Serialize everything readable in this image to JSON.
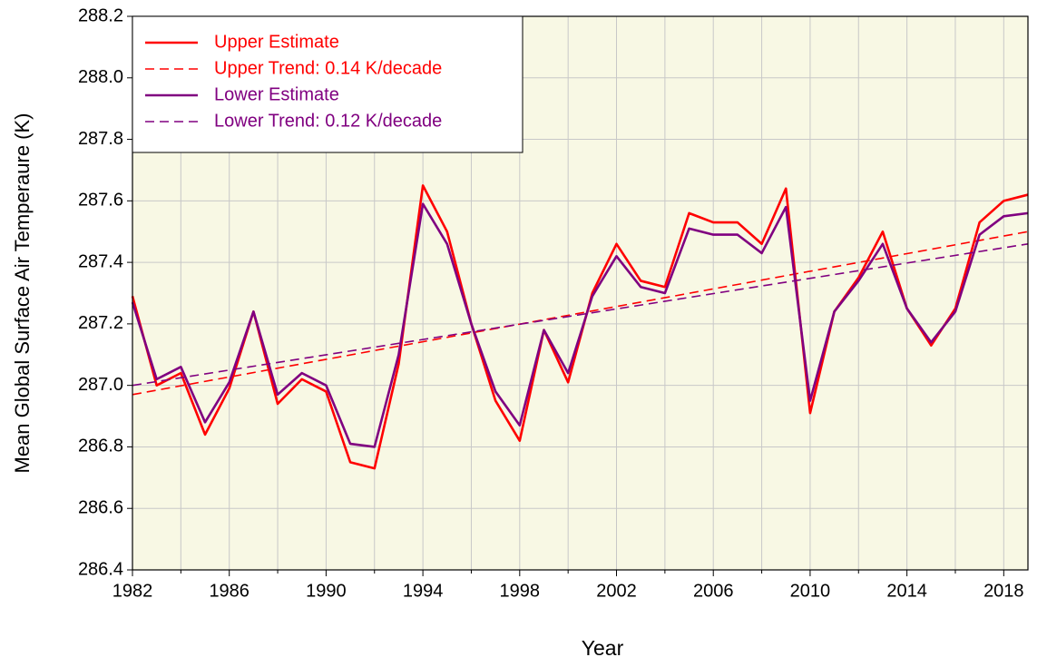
{
  "chart_data": {
    "type": "line",
    "x_label": "Year",
    "y_label": "Mean Global Surface Air Temperaure (K)",
    "x": [
      1982,
      1983,
      1984,
      1985,
      1986,
      1987,
      1988,
      1989,
      1990,
      1991,
      1992,
      1993,
      1994,
      1995,
      1996,
      1997,
      1998,
      1999,
      2000,
      2001,
      2002,
      2003,
      2004,
      2005,
      2006,
      2007,
      2008,
      2009,
      2010,
      2011,
      2012,
      2013,
      2014,
      2015,
      2016,
      2017,
      2018,
      2019
    ],
    "series": [
      {
        "name": "Upper Estimate",
        "color": "#ff0000",
        "style": "solid",
        "values": [
          287.29,
          287.0,
          287.04,
          286.84,
          286.99,
          287.24,
          286.94,
          287.02,
          286.98,
          286.75,
          286.73,
          287.07,
          287.65,
          287.5,
          287.2,
          286.95,
          286.82,
          287.18,
          287.01,
          287.3,
          287.46,
          287.34,
          287.32,
          287.56,
          287.53,
          287.53,
          287.46,
          287.64,
          286.91,
          287.24,
          287.35,
          287.5,
          287.25,
          287.13,
          287.25,
          287.53,
          287.6,
          287.62
        ]
      },
      {
        "name": "Upper Trend: 0.14 K/decade",
        "color": "#ff0000",
        "style": "dashed",
        "x": [
          1982,
          2019
        ],
        "values": [
          286.97,
          287.5
        ]
      },
      {
        "name": "Lower Estimate",
        "color": "#800080",
        "style": "solid",
        "values": [
          287.27,
          287.02,
          287.06,
          286.88,
          287.01,
          287.24,
          286.97,
          287.04,
          287.0,
          286.81,
          286.8,
          287.1,
          287.59,
          287.46,
          287.2,
          286.98,
          286.87,
          287.18,
          287.04,
          287.29,
          287.42,
          287.32,
          287.3,
          287.51,
          287.49,
          287.49,
          287.43,
          287.58,
          286.95,
          287.24,
          287.34,
          287.46,
          287.25,
          287.14,
          287.24,
          287.49,
          287.55,
          287.56
        ]
      },
      {
        "name": "Lower Trend: 0.12 K/decade",
        "color": "#800080",
        "style": "dashed",
        "x": [
          1982,
          2019
        ],
        "values": [
          287.0,
          287.46
        ]
      }
    ],
    "xlim": [
      1982,
      2019
    ],
    "xticks": [
      1982,
      1986,
      1990,
      1994,
      1998,
      2002,
      2006,
      2010,
      2014,
      2018
    ],
    "xminorticks": [
      1984,
      1988,
      1992,
      1996,
      2000,
      2004,
      2008,
      2012,
      2016
    ],
    "ylim": [
      286.4,
      288.2
    ],
    "yticks": [
      286.4,
      286.6,
      286.8,
      {
        "value": 287.0,
        "label": "287.0"
      },
      287.2,
      287.4,
      287.6,
      287.8,
      {
        "value": 288.0,
        "label": "288.0"
      },
      288.2
    ],
    "grid": true,
    "plot_background": "#f8f8e4",
    "legend_position": "upper left"
  }
}
